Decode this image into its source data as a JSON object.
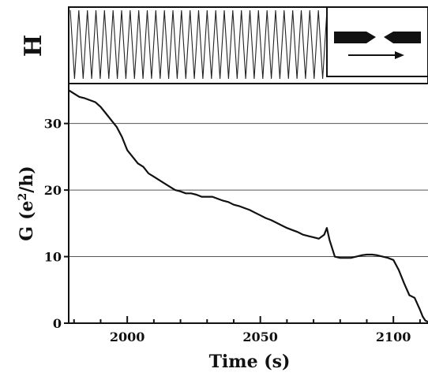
{
  "panel": {
    "letter": "H"
  },
  "chart_data": {
    "type": "line",
    "title": "",
    "xlabel": "Time (s)",
    "ylabel_main": "G",
    "ylabel_unit": "(e2/h)",
    "xlim": [
      1978,
      2113
    ],
    "ylim": [
      0,
      36
    ],
    "xticks": [
      2000,
      2050,
      2100
    ],
    "yticks": [
      0,
      10,
      20,
      30
    ],
    "grid": "horizontal",
    "line_color": "#111111",
    "series": [
      {
        "x": [
          1978,
          1980,
          1982,
          1984,
          1986,
          1988,
          1990,
          1992,
          1994,
          1996,
          1998,
          2000,
          2002,
          2004,
          2006,
          2008,
          2010,
          2012,
          2014,
          2016,
          2018,
          2020,
          2022,
          2024,
          2026,
          2028,
          2030,
          2032,
          2034,
          2036,
          2038,
          2040,
          2042,
          2044,
          2046,
          2048,
          2050,
          2052,
          2054,
          2056,
          2058,
          2060,
          2062,
          2064,
          2066,
          2068,
          2070,
          2072,
          2074,
          2075,
          2076,
          2078,
          2080,
          2082,
          2084,
          2086,
          2088,
          2090,
          2092,
          2094,
          2096,
          2098,
          2100,
          2102,
          2104,
          2106,
          2107,
          2108,
          2110,
          2111,
          2112,
          2113
        ],
        "y": [
          35,
          34.5,
          34,
          33.8,
          33.5,
          33.2,
          32.5,
          31.5,
          30.5,
          29.5,
          28,
          26,
          25,
          24,
          23.5,
          22.5,
          22,
          21.5,
          21,
          20.5,
          20,
          19.8,
          19.5,
          19.5,
          19.3,
          19,
          19,
          19,
          18.7,
          18.4,
          18.2,
          17.8,
          17.6,
          17.3,
          17,
          16.6,
          16.2,
          15.8,
          15.5,
          15.1,
          14.7,
          14.3,
          14,
          13.7,
          13.3,
          13.1,
          12.9,
          12.7,
          13.3,
          14.3,
          12.5,
          10,
          9.8,
          9.8,
          9.8,
          10,
          10.2,
          10.3,
          10.3,
          10.2,
          10,
          9.8,
          9.5,
          8,
          6,
          4.2,
          4,
          3.8,
          2,
          1,
          0.4,
          0.2
        ]
      }
    ],
    "top_panel": {
      "type": "triangle-wave",
      "cycles": 30,
      "inset_icons": [
        "break-junction-electrodes-icon",
        "right-arrow-icon"
      ]
    }
  }
}
